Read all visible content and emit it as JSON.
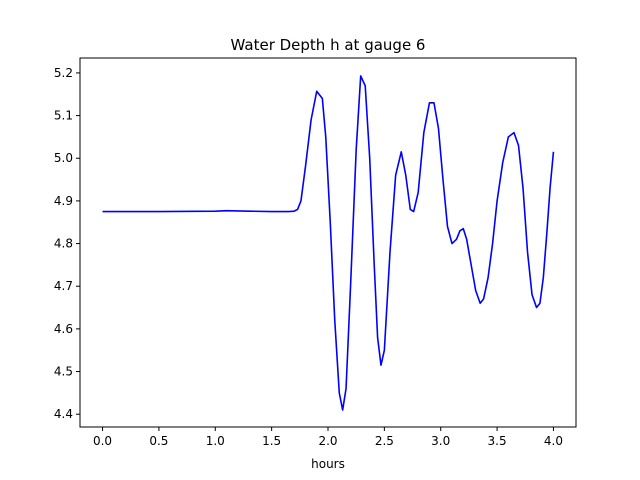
{
  "chart_data": {
    "type": "line",
    "title": "Water Depth h at gauge 6",
    "xlabel": "hours",
    "ylabel": "",
    "xlim": [
      -0.2,
      4.2
    ],
    "ylim": [
      4.37,
      5.235
    ],
    "xticks": [
      0.0,
      0.5,
      1.0,
      1.5,
      2.0,
      2.5,
      3.0,
      3.5,
      4.0
    ],
    "xtick_labels": [
      "0.0",
      "0.5",
      "1.0",
      "1.5",
      "2.0",
      "2.5",
      "3.0",
      "3.5",
      "4.0"
    ],
    "yticks": [
      4.4,
      4.5,
      4.6,
      4.7,
      4.8,
      4.9,
      5.0,
      5.1,
      5.2
    ],
    "ytick_labels": [
      "4.4",
      "4.5",
      "4.6",
      "4.7",
      "4.8",
      "4.9",
      "5.0",
      "5.1",
      "5.2"
    ],
    "grid": false,
    "series": [
      {
        "color": "#0000ff",
        "x": [
          0.0,
          0.5,
          1.0,
          1.1,
          1.3,
          1.5,
          1.65,
          1.7,
          1.73,
          1.76,
          1.8,
          1.85,
          1.9,
          1.95,
          1.98,
          2.02,
          2.06,
          2.1,
          2.13,
          2.16,
          2.2,
          2.25,
          2.29,
          2.33,
          2.37,
          2.41,
          2.44,
          2.47,
          2.5,
          2.55,
          2.6,
          2.65,
          2.69,
          2.73,
          2.76,
          2.8,
          2.85,
          2.9,
          2.94,
          2.98,
          3.02,
          3.06,
          3.1,
          3.14,
          3.17,
          3.2,
          3.23,
          3.27,
          3.31,
          3.35,
          3.38,
          3.42,
          3.46,
          3.5,
          3.55,
          3.6,
          3.65,
          3.69,
          3.73,
          3.77,
          3.81,
          3.85,
          3.88,
          3.91,
          3.94,
          3.97,
          4.0
        ],
        "y": [
          4.875,
          4.875,
          4.876,
          4.877,
          4.876,
          4.875,
          4.875,
          4.876,
          4.88,
          4.9,
          4.98,
          5.09,
          5.157,
          5.14,
          5.05,
          4.85,
          4.62,
          4.45,
          4.41,
          4.46,
          4.7,
          5.02,
          5.193,
          5.17,
          5.0,
          4.75,
          4.58,
          4.515,
          4.55,
          4.78,
          4.96,
          5.015,
          4.96,
          4.88,
          4.875,
          4.92,
          5.06,
          5.13,
          5.13,
          5.07,
          4.95,
          4.84,
          4.8,
          4.81,
          4.83,
          4.835,
          4.81,
          4.75,
          4.69,
          4.66,
          4.67,
          4.72,
          4.8,
          4.9,
          4.99,
          5.05,
          5.06,
          5.03,
          4.93,
          4.78,
          4.68,
          4.65,
          4.66,
          4.72,
          4.82,
          4.93,
          5.015
        ]
      }
    ]
  }
}
